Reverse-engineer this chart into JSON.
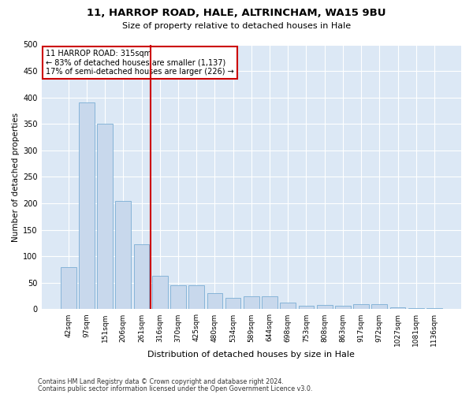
{
  "title1": "11, HARROP ROAD, HALE, ALTRINCHAM, WA15 9BU",
  "title2": "Size of property relative to detached houses in Hale",
  "xlabel": "Distribution of detached houses by size in Hale",
  "ylabel": "Number of detached properties",
  "categories": [
    "42sqm",
    "97sqm",
    "151sqm",
    "206sqm",
    "261sqm",
    "316sqm",
    "370sqm",
    "425sqm",
    "480sqm",
    "534sqm",
    "589sqm",
    "644sqm",
    "698sqm",
    "753sqm",
    "808sqm",
    "863sqm",
    "917sqm",
    "972sqm",
    "1027sqm",
    "1081sqm",
    "1136sqm"
  ],
  "values": [
    80,
    390,
    350,
    205,
    123,
    63,
    45,
    45,
    30,
    22,
    25,
    25,
    13,
    7,
    8,
    7,
    10,
    10,
    3,
    2,
    2
  ],
  "bar_color": "#c8d8ec",
  "bar_edge_color": "#7aadd4",
  "background_color": "#dce8f5",
  "grid_color": "#ffffff",
  "vline_color": "#cc0000",
  "annotation_title": "11 HARROP ROAD: 315sqm",
  "annotation_line1": "← 83% of detached houses are smaller (1,137)",
  "annotation_line2": "17% of semi-detached houses are larger (226) →",
  "annotation_box_color": "#ffffff",
  "annotation_box_edge_color": "#cc0000",
  "footer1": "Contains HM Land Registry data © Crown copyright and database right 2024.",
  "footer2": "Contains public sector information licensed under the Open Government Licence v3.0.",
  "ylim": [
    0,
    500
  ],
  "yticks": [
    0,
    50,
    100,
    150,
    200,
    250,
    300,
    350,
    400,
    450,
    500
  ]
}
